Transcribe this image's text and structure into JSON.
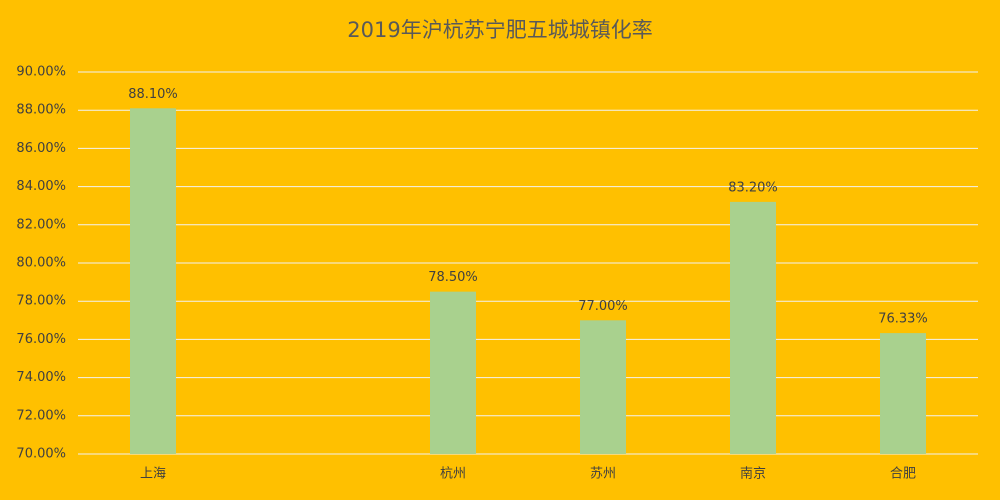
{
  "chart_data": {
    "type": "bar",
    "title": "2019年沪杭苏宁肥五城城镇化率",
    "categories": [
      "上海",
      null,
      "杭州",
      "苏州",
      "南京",
      "合肥"
    ],
    "values": [
      88.1,
      null,
      78.5,
      77.0,
      83.2,
      76.33
    ],
    "value_labels": [
      "88.10%",
      null,
      "78.50%",
      "77.00%",
      "83.20%",
      "76.33%"
    ],
    "color": "#a9d18e",
    "ylim": [
      70,
      90
    ],
    "yticks": [
      {
        "value": 70,
        "label": "70.00%"
      },
      {
        "value": 72,
        "label": "72.00%"
      },
      {
        "value": 74,
        "label": "74.00%"
      },
      {
        "value": 76,
        "label": "76.00%"
      },
      {
        "value": 78,
        "label": "78.00%"
      },
      {
        "value": 80,
        "label": "80.00%"
      },
      {
        "value": 82,
        "label": "82.00%"
      },
      {
        "value": 84,
        "label": "84.00%"
      },
      {
        "value": 86,
        "label": "86.00%"
      },
      {
        "value": 88,
        "label": "88.00%"
      },
      {
        "value": 90,
        "label": "90.00%"
      }
    ],
    "grid": true
  }
}
